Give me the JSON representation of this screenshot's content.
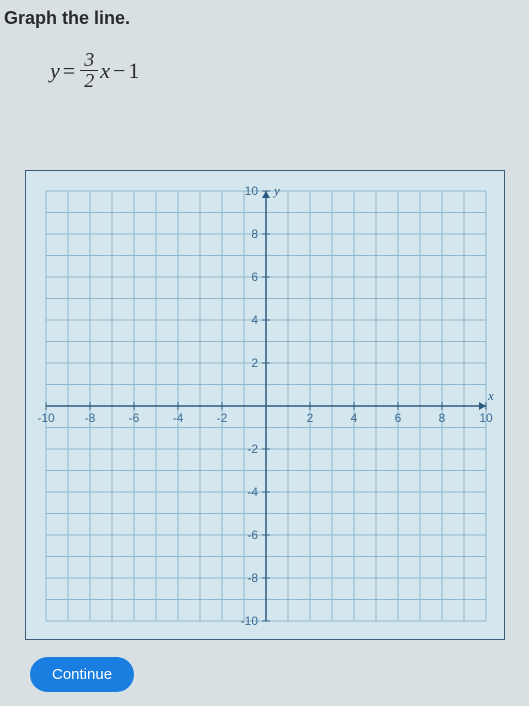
{
  "prompt": {
    "text": "Graph the line.",
    "color": "#2a2a2a",
    "fontsize": 18
  },
  "equation": {
    "lhs": "y",
    "eq": "=",
    "numerator": "3",
    "denominator": "2",
    "var": "x",
    "op": "−",
    "const": "1",
    "color": "#2a2a2a"
  },
  "graph": {
    "type": "coordinate-grid",
    "background_color": "#d4e6ee",
    "border_color": "#3a5a78",
    "grid_color": "#8fb8d0",
    "axis_color": "#2b5a80",
    "tick_color": "#3a6a90",
    "xlim": [
      -10,
      10
    ],
    "ylim": [
      -10,
      10
    ],
    "xtick_step": 1,
    "ytick_step": 1,
    "xtick_labels": [
      -10,
      -8,
      -6,
      -4,
      -2,
      2,
      4,
      6,
      8,
      10
    ],
    "ytick_labels": [
      -10,
      -8,
      -6,
      -4,
      -2,
      2,
      4,
      6,
      8,
      10
    ],
    "xlabel": "x",
    "ylabel": "y",
    "vb_width": 480,
    "vb_height": 470,
    "margin": 20
  },
  "button": {
    "label": "Continue",
    "bg_color": "#1a7de0",
    "text_color": "#ffffff"
  }
}
